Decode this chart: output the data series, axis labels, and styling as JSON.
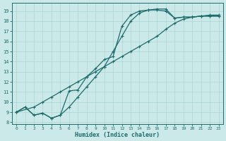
{
  "xlabel": "Humidex (Indice chaleur)",
  "xlim": [
    -0.5,
    23.5
  ],
  "ylim": [
    7.8,
    19.8
  ],
  "yticks": [
    8,
    9,
    10,
    11,
    12,
    13,
    14,
    15,
    16,
    17,
    18,
    19
  ],
  "xticks": [
    0,
    1,
    2,
    3,
    4,
    5,
    6,
    7,
    8,
    9,
    10,
    11,
    12,
    13,
    14,
    15,
    16,
    17,
    18,
    19,
    20,
    21,
    22,
    23
  ],
  "bg_color": "#cce9e9",
  "line_color": "#1e6b6b",
  "grid_color": "#aad4d4",
  "line1_x": [
    0,
    1,
    2,
    3,
    4,
    5,
    6,
    7,
    8,
    9,
    10,
    11,
    12,
    13,
    14,
    15,
    16,
    17,
    18,
    19,
    20,
    21,
    22,
    23
  ],
  "line1_y": [
    9.0,
    9.5,
    8.7,
    8.9,
    8.4,
    8.7,
    11.1,
    11.2,
    12.5,
    13.3,
    14.2,
    14.5,
    17.5,
    18.6,
    19.0,
    19.1,
    19.1,
    19.0,
    18.3,
    18.4,
    18.4,
    18.5,
    18.5,
    18.5
  ],
  "line2_x": [
    0,
    1,
    2,
    3,
    4,
    5,
    6,
    7,
    8,
    9,
    10,
    11,
    12,
    13,
    14,
    15,
    16,
    17,
    18,
    19,
    20,
    21,
    22,
    23
  ],
  "line2_y": [
    9.0,
    9.5,
    8.7,
    8.9,
    8.4,
    8.7,
    9.5,
    10.5,
    11.5,
    12.5,
    13.5,
    15.0,
    16.5,
    18.0,
    18.8,
    19.1,
    19.2,
    19.2,
    18.3,
    18.4,
    18.4,
    18.5,
    18.5,
    18.5
  ],
  "line3_x": [
    0,
    2,
    3,
    4,
    5,
    6,
    7,
    8,
    9,
    10,
    11,
    12,
    13,
    14,
    15,
    16,
    17,
    18,
    19,
    20,
    21,
    22,
    23
  ],
  "line3_y": [
    9.0,
    9.5,
    10.0,
    10.5,
    11.0,
    11.5,
    12.0,
    12.5,
    13.0,
    13.5,
    14.0,
    14.5,
    15.0,
    15.5,
    16.0,
    16.5,
    17.2,
    17.8,
    18.2,
    18.4,
    18.5,
    18.6,
    18.6
  ]
}
